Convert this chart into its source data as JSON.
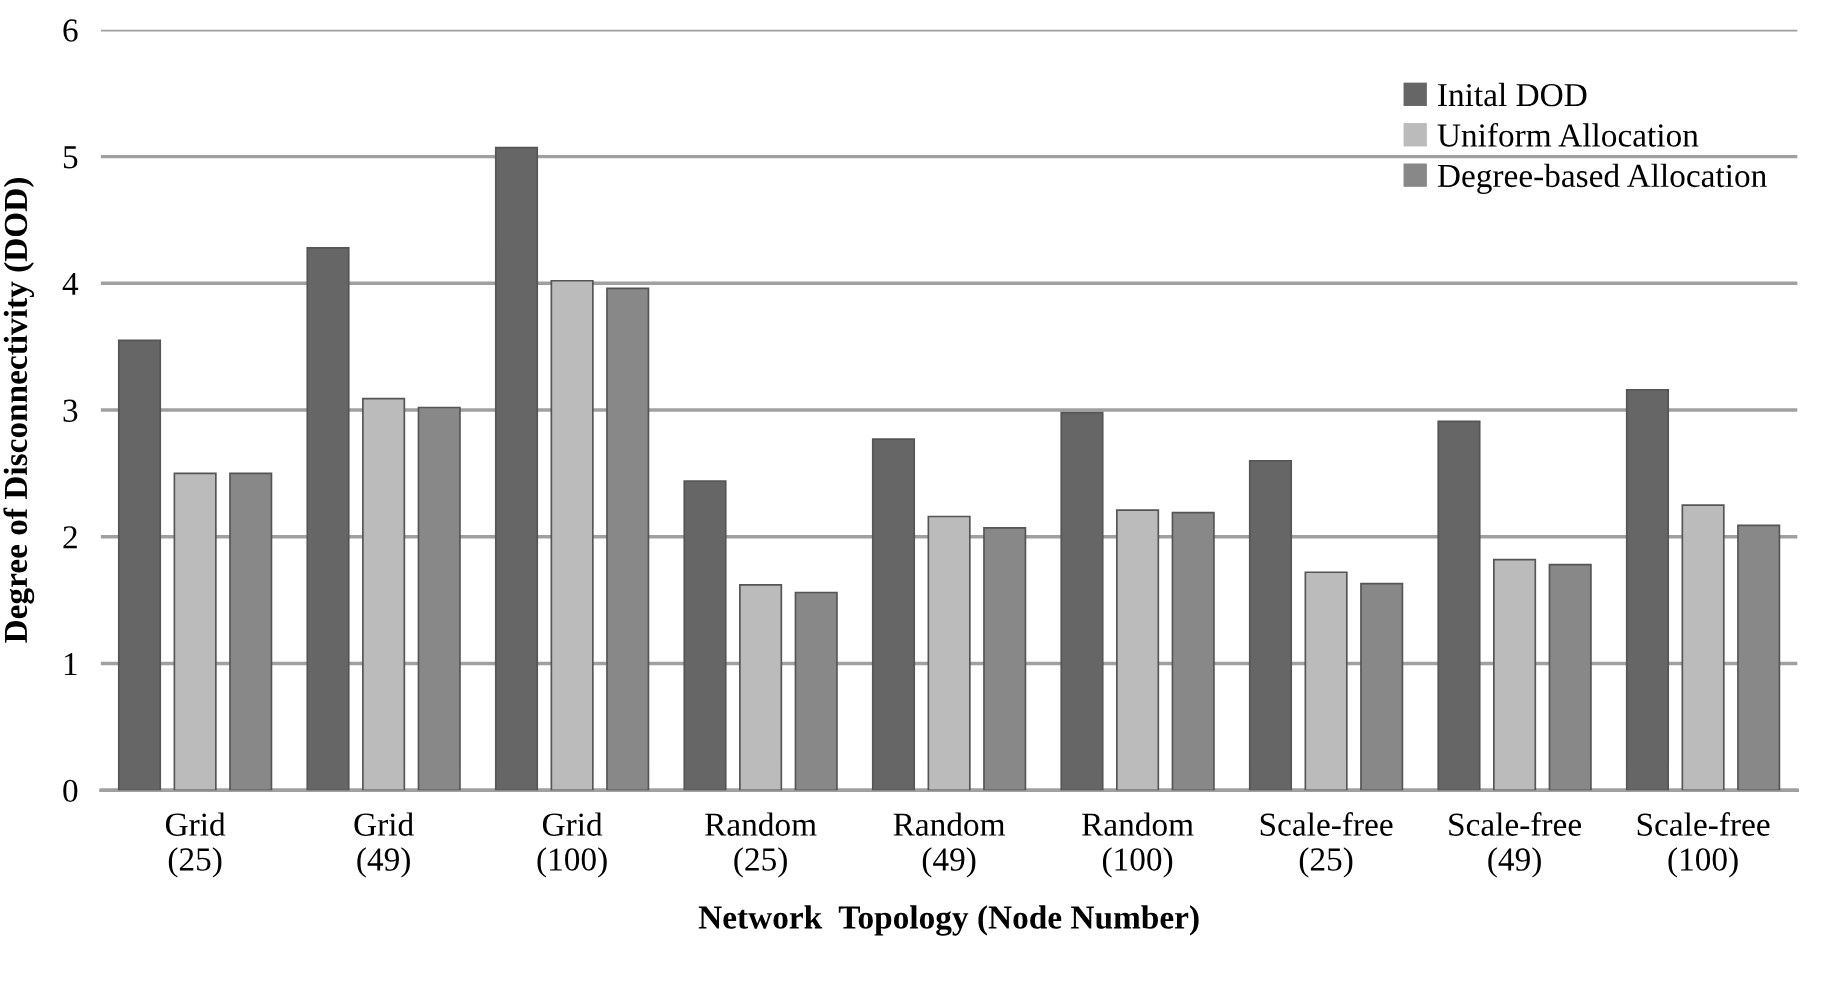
{
  "chart_data": {
    "type": "bar",
    "xlabel": "Network  Topology (Node Number)",
    "ylabel": "Degree of Disconnectivity (DOD)",
    "categories": [
      "Grid\n(25)",
      "Grid\n(49)",
      "Grid\n(100)",
      "Random\n(25)",
      "Random\n(49)",
      "Random\n(100)",
      "Scale-free\n(25)",
      "Scale-free\n(49)",
      "Scale-free\n(100)"
    ],
    "series": [
      {
        "name": "Inital DOD",
        "color": "#666666",
        "values": [
          3.55,
          4.28,
          5.07,
          2.44,
          2.77,
          2.98,
          2.6,
          2.91,
          3.16
        ]
      },
      {
        "name": "Uniform Allocation",
        "color": "#bbbbbb",
        "values": [
          2.5,
          3.09,
          4.02,
          1.62,
          2.16,
          2.21,
          1.72,
          1.82,
          2.25
        ]
      },
      {
        "name": "Degree-based Allocation",
        "color": "#888888",
        "values": [
          2.5,
          3.02,
          3.96,
          1.56,
          2.07,
          2.19,
          1.63,
          1.78,
          2.09
        ]
      }
    ],
    "ylim": [
      0,
      6
    ],
    "yticks": [
      0,
      1,
      2,
      3,
      4,
      5,
      6
    ],
    "grid": "y",
    "legend": "top right"
  }
}
